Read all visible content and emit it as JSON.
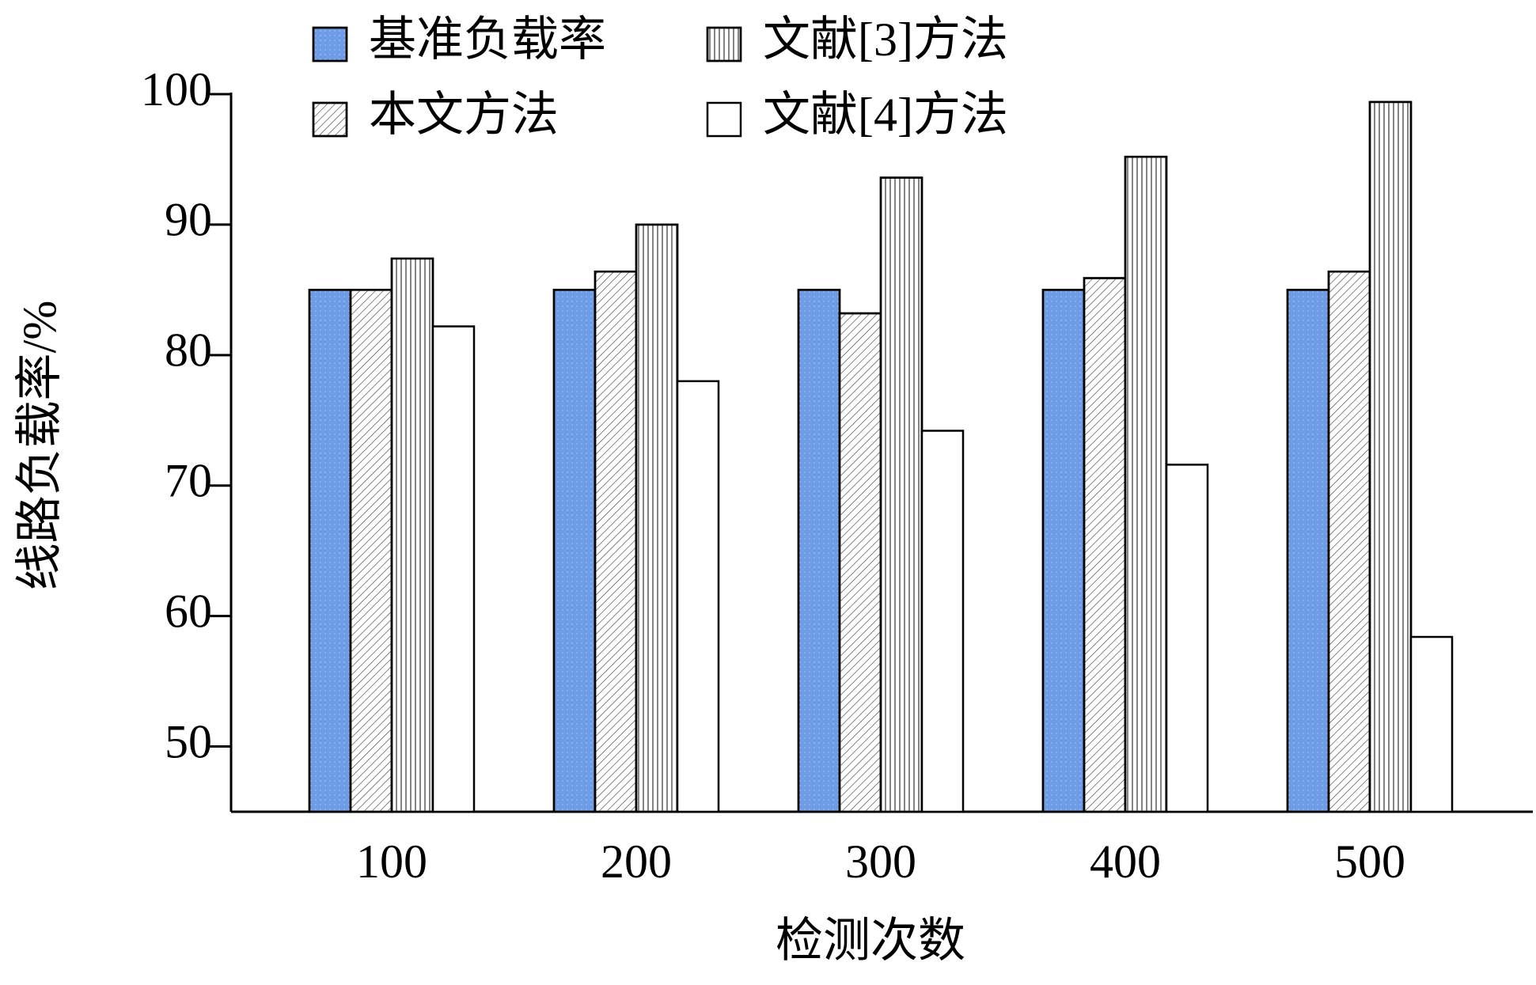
{
  "chart_data": {
    "type": "bar",
    "x_label": "检测次数",
    "y_label": "线路负载率/%",
    "categories": [
      "100",
      "200",
      "300",
      "400",
      "500"
    ],
    "series": [
      {
        "name": "基准负载率",
        "color": "#6f9ce6",
        "hatch": "dots",
        "values": [
          85,
          85,
          85,
          85,
          85
        ]
      },
      {
        "name": "本文方法",
        "color": "#ffffff",
        "hatch": "diagonal",
        "values": [
          85,
          86.4,
          83.2,
          85.9,
          86.4
        ]
      },
      {
        "name": "文献[3]方法",
        "color": "#ffffff",
        "hatch": "vertical",
        "values": [
          87.4,
          90,
          93.6,
          95.2,
          99.4
        ]
      },
      {
        "name": "文献[4]方法",
        "color": "#ffffff",
        "hatch": "none",
        "values": [
          82.2,
          78,
          74.2,
          71.6,
          58.4
        ]
      }
    ],
    "ylim": [
      45,
      100
    ],
    "yticks": [
      50,
      60,
      70,
      80,
      90,
      100
    ],
    "grid": false
  }
}
